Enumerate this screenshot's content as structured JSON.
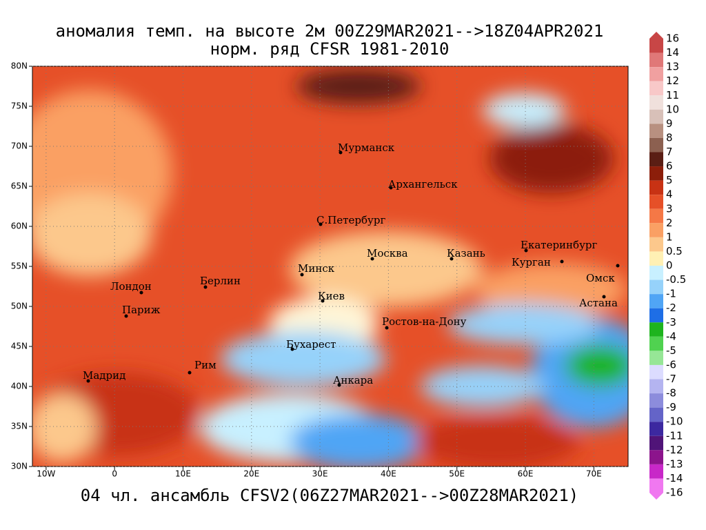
{
  "title": "аномалия темп. на высоте 2м 00Z29MAR2021-->18Z04APR2021",
  "subtitle": "норм. ряд CFSR 1981-2010",
  "footer": "04 чл. ансамбль CFSV2(06Z27MAR2021-->00Z28MAR2021)",
  "map": {
    "xlim": [
      -12,
      75
    ],
    "ylim": [
      30,
      80
    ],
    "xticks": [
      {
        "value": -10,
        "label": "10W"
      },
      0,
      {
        "value": 10,
        "label": "10E"
      },
      {
        "value": 20,
        "label": "20E"
      },
      {
        "value": 30,
        "label": "30E"
      },
      {
        "value": 40,
        "label": "40E"
      },
      {
        "value": 50,
        "label": "50E"
      },
      {
        "value": 60,
        "label": "60E"
      },
      {
        "value": 70,
        "label": "70E"
      }
    ],
    "yticks": [
      {
        "value": 80,
        "label": "80N"
      },
      {
        "value": 75,
        "label": "75N"
      },
      {
        "value": 70,
        "label": "70N"
      },
      {
        "value": 65,
        "label": "65N"
      },
      {
        "value": 60,
        "label": "60N"
      },
      {
        "value": 55,
        "label": "55N"
      },
      {
        "value": 50,
        "label": "50N"
      },
      {
        "value": 45,
        "label": "45N"
      },
      {
        "value": 40,
        "label": "40N"
      },
      {
        "value": 35,
        "label": "35N"
      },
      {
        "value": 30,
        "label": "30N"
      }
    ],
    "cities": [
      "Мурманск",
      "Архангельск",
      "С.Петербург",
      "Москва",
      "Казань",
      "Екатеринбург",
      "Курган",
      "Минск",
      "Омск",
      "Лондон",
      "Берлин",
      "Киев",
      "Астана",
      "Париж",
      "Ростов-на-Дону",
      "Бухарест",
      "Рим",
      "Мадрид",
      "Анкара"
    ]
  },
  "colorbar": {
    "levels": [
      16,
      14,
      13,
      12,
      11,
      10,
      9,
      8,
      7,
      6,
      5,
      4,
      3,
      2,
      1,
      0.5,
      0,
      -0.5,
      -1,
      -2,
      -3,
      -4,
      -5,
      -6,
      -7,
      -8,
      -9,
      -10,
      -11,
      -12,
      -13,
      -14,
      -16
    ],
    "colors": [
      "#c84646",
      "#e07878",
      "#f0a0a0",
      "#f8c8c8",
      "#f0e0dc",
      "#d8c0b8",
      "#b89080",
      "#8c6050",
      "#5a1e14",
      "#8c1e0a",
      "#c83214",
      "#e65028",
      "#f57846",
      "#faa064",
      "#fcc88c",
      "#fff0b4",
      "#c8f0ff",
      "#96d2fa",
      "#50a5f5",
      "#1e6ee6",
      "#1eb41e",
      "#50d250",
      "#96e696",
      "#dcdcff",
      "#b4b4f0",
      "#8c8cdc",
      "#6464c8",
      "#3c28a0",
      "#501478",
      "#8c148c",
      "#c828c8",
      "#f078f0"
    ]
  }
}
